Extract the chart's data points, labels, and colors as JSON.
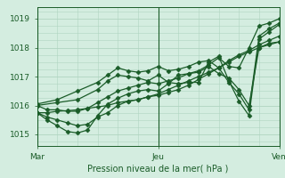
{
  "xlabel": "Pression niveau de la mer( hPa )",
  "bg_color": "#d4ede0",
  "plot_bg_color": "#d4ede0",
  "grid_color": "#b0d4c0",
  "line_color": "#1a5c28",
  "marker": "D",
  "marker_size": 2.5,
  "line_width": 0.9,
  "xlim": [
    0,
    48
  ],
  "ylim": [
    1014.6,
    1019.4
  ],
  "yticks": [
    1015,
    1016,
    1017,
    1018,
    1019
  ],
  "xtick_positions": [
    0,
    24,
    48
  ],
  "xtick_labels": [
    "Mar",
    "Jeu",
    "Ven"
  ],
  "vlines": [
    0,
    24,
    48
  ],
  "series": [
    [
      0,
      1015.75,
      2,
      1015.75,
      4,
      1015.8,
      6,
      1015.82,
      8,
      1015.85,
      10,
      1015.9,
      12,
      1015.95,
      14,
      1016.0,
      16,
      1016.1,
      18,
      1016.15,
      20,
      1016.2,
      22,
      1016.3,
      24,
      1016.4,
      26,
      1016.55,
      28,
      1016.7,
      30,
      1016.85,
      32,
      1017.0,
      34,
      1017.15,
      36,
      1017.3,
      38,
      1017.5,
      40,
      1017.7,
      42,
      1017.85,
      44,
      1018.0,
      46,
      1018.1,
      48,
      1018.2
    ],
    [
      0,
      1015.75,
      2,
      1015.6,
      4,
      1015.5,
      6,
      1015.4,
      8,
      1015.3,
      10,
      1015.35,
      12,
      1015.6,
      14,
      1015.75,
      16,
      1016.0,
      18,
      1016.15,
      20,
      1016.2,
      22,
      1016.3,
      24,
      1016.35,
      26,
      1016.45,
      28,
      1016.55,
      30,
      1016.7,
      32,
      1016.9,
      34,
      1017.1,
      36,
      1017.3,
      38,
      1017.55,
      40,
      1017.75,
      42,
      1017.9,
      44,
      1018.1,
      46,
      1018.25,
      48,
      1018.4
    ],
    [
      0,
      1015.75,
      2,
      1015.5,
      4,
      1015.3,
      6,
      1015.1,
      8,
      1015.05,
      10,
      1015.15,
      12,
      1015.65,
      14,
      1016.05,
      16,
      1016.25,
      18,
      1016.4,
      20,
      1016.5,
      22,
      1016.55,
      24,
      1016.5,
      26,
      1016.75,
      28,
      1017.05,
      30,
      1017.1,
      32,
      1017.15,
      34,
      1017.35,
      36,
      1017.1,
      38,
      1016.95,
      40,
      1016.55,
      42,
      1016.0,
      44,
      1018.0,
      46,
      1018.15,
      48,
      1018.2
    ],
    [
      0,
      1016.0,
      2,
      1015.85,
      4,
      1015.85,
      6,
      1015.8,
      8,
      1015.8,
      10,
      1015.9,
      12,
      1016.1,
      14,
      1016.3,
      16,
      1016.5,
      18,
      1016.6,
      20,
      1016.7,
      22,
      1016.8,
      24,
      1016.75,
      26,
      1016.85,
      28,
      1016.95,
      30,
      1017.1,
      32,
      1017.2,
      34,
      1017.4,
      36,
      1017.65,
      38,
      1017.35,
      40,
      1017.3,
      42,
      1018.0,
      44,
      1018.75,
      46,
      1018.85,
      48,
      1019.0
    ],
    [
      0,
      1016.0,
      4,
      1016.1,
      8,
      1016.2,
      12,
      1016.55,
      14,
      1016.85,
      16,
      1017.05,
      18,
      1017.0,
      20,
      1016.95,
      22,
      1016.85,
      24,
      1017.05,
      26,
      1016.8,
      28,
      1016.75,
      30,
      1016.8,
      32,
      1016.8,
      34,
      1017.5,
      36,
      1017.7,
      38,
      1016.85,
      40,
      1016.15,
      42,
      1015.65,
      44,
      1018.3,
      46,
      1018.55,
      48,
      1018.8
    ],
    [
      0,
      1016.05,
      4,
      1016.2,
      8,
      1016.5,
      12,
      1016.8,
      14,
      1017.05,
      16,
      1017.3,
      18,
      1017.2,
      20,
      1017.15,
      22,
      1017.2,
      24,
      1017.35,
      26,
      1017.2,
      28,
      1017.25,
      30,
      1017.35,
      32,
      1017.5,
      34,
      1017.55,
      36,
      1017.3,
      38,
      1016.8,
      40,
      1016.4,
      42,
      1015.85,
      44,
      1018.4,
      46,
      1018.65,
      48,
      1018.85
    ]
  ]
}
